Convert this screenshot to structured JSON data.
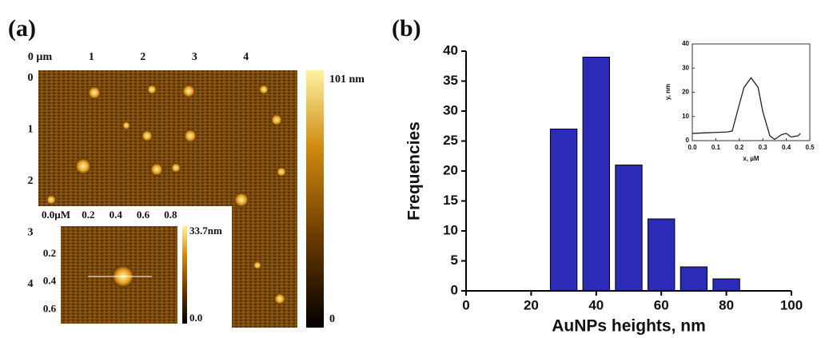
{
  "chart_data": [
    {
      "type": "image",
      "label": "(a)",
      "xlim": [
        0,
        5
      ],
      "xticks": [
        {
          "value": 0,
          "label": "0 µm"
        },
        1,
        2,
        3,
        4
      ],
      "ylim": [
        0,
        5
      ],
      "yticks": [
        0,
        1,
        2,
        3,
        4
      ],
      "clim": [
        0,
        101
      ],
      "cticks": [
        {
          "value": 101,
          "label": "101 nm"
        },
        0
      ],
      "inset": {
        "xlim": [
          0,
          0.85
        ],
        "xticks": [
          {
            "value": 0,
            "label": "0.0µM"
          },
          0.2,
          0.4,
          0.6,
          0.8
        ],
        "ylim": [
          0,
          0.7
        ],
        "yticks": [
          0.2,
          0.4,
          0.6
        ],
        "clim": [
          0,
          33.7
        ],
        "cticks": [
          {
            "value": 33.7,
            "label": "33.7nm"
          },
          {
            "value": 0,
            "label": "0.0"
          }
        ]
      }
    },
    {
      "type": "bar",
      "label": "(b)",
      "xlabel": "AuNPs heights, nm",
      "ylabel": "Frequencies",
      "x": [
        30,
        40,
        50,
        60,
        70,
        80
      ],
      "values": [
        27,
        39,
        21,
        12,
        4,
        2
      ],
      "color": "#2b2bb8",
      "xlim": [
        0,
        100
      ],
      "xticks": [
        0,
        20,
        40,
        60,
        80,
        100
      ],
      "ylim": [
        0,
        40
      ],
      "yticks": [
        0,
        5,
        10,
        15,
        20,
        25,
        30,
        35,
        40
      ]
    },
    {
      "type": "line",
      "xlabel": "x, µM",
      "ylabel": "y, nm",
      "color": "#222222",
      "x": [
        0,
        0.05,
        0.1,
        0.15,
        0.17,
        0.2,
        0.22,
        0.25,
        0.28,
        0.3,
        0.33,
        0.35,
        0.38,
        0.4,
        0.42,
        0.45,
        0.46
      ],
      "values": [
        3,
        3.2,
        3.4,
        3.6,
        4,
        15,
        22,
        26,
        22,
        12,
        2,
        0.5,
        2.5,
        3,
        1.5,
        2,
        3
      ],
      "xlim": [
        0,
        0.5
      ],
      "xticks": [
        {
          "value": 0,
          "label": "0.0"
        },
        0.1,
        0.2,
        0.3,
        0.4,
        0.5
      ],
      "ylim": [
        0,
        40
      ],
      "yticks": [
        0,
        10,
        20,
        30,
        40
      ]
    }
  ]
}
